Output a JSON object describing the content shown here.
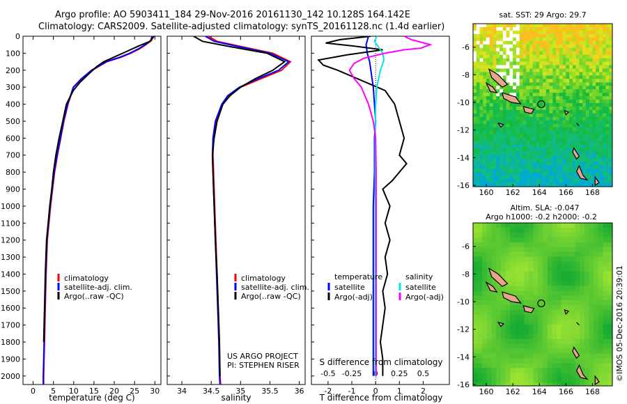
{
  "header": {
    "title_line1": "Argo profile: AO 5903411_184 29-Nov-2016 20161130_142 10.128S 164.142E",
    "title_line2": "Climatology: CARS2009. Satellite-adjusted climatology: synTS_20161128.nc (1.4d earlier)"
  },
  "colors": {
    "climatology": "#ff0000",
    "satellite": "#0000ff",
    "argo": "#000000",
    "sal_satellite": "#00e5e5",
    "sal_argo": "#ff00ff",
    "land": "#e6a58c"
  },
  "chart_data": [
    {
      "type": "line",
      "name": "temperature-panel",
      "xlabel": "temperature (deg C)",
      "ylabel": "",
      "xlim": [
        -2.5,
        31.5
      ],
      "ylim": [
        2050,
        0
      ],
      "xticks": [
        0,
        5,
        10,
        15,
        20,
        25,
        30
      ],
      "xtick_labels": [
        "0",
        "5",
        "10",
        "15",
        "20",
        "25",
        "30"
      ],
      "yticks": [
        0,
        100,
        200,
        300,
        400,
        500,
        600,
        700,
        800,
        900,
        1000,
        1100,
        1200,
        1300,
        1400,
        1500,
        1600,
        1700,
        1800,
        1900,
        2000
      ],
      "ytick_labels": [
        "0",
        "100",
        "200",
        "300",
        "400",
        "500",
        "600",
        "700",
        "800",
        "900",
        "1000",
        "1100",
        "1200",
        "1300",
        "1400",
        "1500",
        "1600",
        "1700",
        "1800",
        "1900",
        "2000"
      ],
      "legend": [
        "climatology",
        "satellite-adj. clim.",
        "Argo(..raw -QC)"
      ],
      "series": [
        {
          "name": "climatology",
          "color": "#ff0000",
          "x": [
            29.6,
            29.2,
            27.8,
            26.2,
            24.1,
            21.5,
            18.2,
            14.6,
            12.0,
            10.0,
            8.6,
            7.6,
            6.8,
            6.0,
            5.3,
            4.8,
            4.3,
            3.9,
            3.5,
            3.2,
            3.0,
            2.8,
            2.6,
            2.6
          ],
          "y": [
            0,
            25,
            50,
            75,
            100,
            125,
            150,
            200,
            250,
            300,
            400,
            500,
            600,
            700,
            800,
            900,
            1000,
            1100,
            1200,
            1400,
            1600,
            1800,
            2000,
            2050
          ]
        },
        {
          "name": "satellite-adj. clim.",
          "color": "#0000ff",
          "x": [
            29.3,
            29.0,
            27.6,
            25.9,
            23.8,
            21.2,
            18.0,
            14.4,
            11.9,
            9.9,
            8.5,
            7.5,
            6.7,
            5.9,
            5.2,
            4.7,
            4.2,
            3.8,
            3.4,
            3.1,
            2.9,
            2.7,
            2.5,
            2.5
          ],
          "y": [
            0,
            25,
            50,
            75,
            100,
            125,
            150,
            200,
            250,
            300,
            400,
            500,
            600,
            700,
            800,
            900,
            1000,
            1100,
            1200,
            1400,
            1600,
            1800,
            2000,
            2050
          ]
        },
        {
          "name": "Argo(..raw -QC)",
          "color": "#000000",
          "x": [
            29.8,
            28.8,
            25.8,
            23.0,
            20.2,
            17.4,
            15.6,
            13.8,
            11.6,
            9.9,
            8.2,
            7.3,
            6.4,
            5.6,
            5.0,
            4.6,
            4.1,
            3.7,
            3.3,
            3.0,
            2.8,
            2.6
          ],
          "y": [
            0,
            30,
            60,
            90,
            120,
            150,
            180,
            220,
            270,
            320,
            400,
            500,
            600,
            700,
            800,
            900,
            1000,
            1100,
            1200,
            1400,
            1600,
            1800
          ]
        }
      ]
    },
    {
      "type": "line",
      "name": "salinity-panel",
      "xlabel": "salinity",
      "xlim": [
        33.75,
        36.1
      ],
      "ylim": [
        2050,
        0
      ],
      "xticks": [
        34,
        34.5,
        35,
        35.5,
        36
      ],
      "xtick_labels": [
        "34",
        "34.5",
        "35",
        "35.5",
        "36"
      ],
      "legend": [
        "climatology",
        "satellite-adj. clim.",
        "Argo(..raw -QC)"
      ],
      "annotation": [
        "US ARGO PROJECT",
        "PI: STEPHEN RISER"
      ],
      "series": [
        {
          "name": "climatology",
          "color": "#ff0000",
          "x": [
            34.45,
            34.6,
            35.0,
            35.55,
            35.85,
            35.7,
            35.35,
            35.0,
            34.8,
            34.7,
            34.58,
            34.54,
            34.53,
            34.54,
            34.56,
            34.58,
            34.6,
            34.62,
            34.64,
            34.65,
            34.66
          ],
          "y": [
            0,
            30,
            60,
            100,
            150,
            200,
            250,
            300,
            350,
            400,
            500,
            600,
            700,
            800,
            1000,
            1200,
            1400,
            1600,
            1800,
            2000,
            2050
          ]
        },
        {
          "name": "satellite-adj. clim.",
          "color": "#0000ff",
          "x": [
            34.4,
            34.55,
            34.95,
            35.5,
            35.82,
            35.65,
            35.3,
            34.98,
            34.78,
            34.68,
            34.57,
            34.53,
            34.52,
            34.53,
            34.55,
            34.57,
            34.59,
            34.61,
            34.63,
            34.64,
            34.65
          ],
          "y": [
            0,
            30,
            60,
            100,
            150,
            200,
            250,
            300,
            350,
            400,
            500,
            600,
            700,
            800,
            1000,
            1200,
            1400,
            1600,
            1800,
            2000,
            2050
          ]
        },
        {
          "name": "Argo(..raw -QC)",
          "color": "#000000",
          "x": [
            34.2,
            34.35,
            34.8,
            35.45,
            35.75,
            35.55,
            35.25,
            35.0,
            34.82,
            34.7,
            34.6,
            34.55,
            34.52,
            34.53,
            34.55,
            34.57,
            34.6,
            34.62,
            34.64,
            34.65
          ],
          "y": [
            0,
            30,
            60,
            100,
            150,
            200,
            250,
            300,
            350,
            400,
            500,
            600,
            700,
            800,
            1000,
            1200,
            1400,
            1600,
            1800,
            2000
          ]
        }
      ]
    },
    {
      "type": "line",
      "name": "difference-panel",
      "xlabel": "T difference from climatology",
      "xlabel_top": "S difference from climatology",
      "xlim": [
        -2.7,
        3.1
      ],
      "ylim": [
        2050,
        0
      ],
      "xticks": [
        -2,
        -1,
        0,
        1,
        2
      ],
      "xtick_labels": [
        "-2",
        "-1",
        "0",
        "1",
        "2"
      ],
      "s_xticks": [
        -0.5,
        -0.25,
        0,
        0.25,
        0.5
      ],
      "s_xtick_labels": [
        "-0.5",
        "-0.25",
        "0",
        "0.25",
        "0.5"
      ],
      "legend": [
        "temperature",
        "satellite",
        "Argo(-adj)",
        "salinity",
        "satellite",
        "Argo(-adj)"
      ],
      "series": [
        {
          "name": "temperature satellite",
          "color": "#0000ff",
          "x": [
            -0.3,
            -0.4,
            -0.35,
            -0.25,
            -0.2,
            -0.1,
            -0.05,
            0,
            -0.05,
            -0.05,
            -0.1,
            -0.1,
            -0.1,
            -0.1,
            -0.1,
            -0.1
          ],
          "y": [
            0,
            50,
            100,
            150,
            200,
            300,
            400,
            500,
            600,
            800,
            1000,
            1200,
            1400,
            1600,
            1800,
            2000
          ]
        },
        {
          "name": "temperature Argo(-adj)",
          "color": "#000000",
          "x": [
            -0.2,
            -1.5,
            -2.1,
            -0.8,
            0.3,
            -1.2,
            -2.4,
            -2.2,
            -1.6,
            -0.6,
            0.4,
            0.8,
            1.0,
            1.2,
            1.0,
            1.3,
            1.0,
            0.7,
            0.3,
            0.6,
            0.4,
            0.6,
            0.4,
            0.5,
            0.3,
            0.4,
            0.3,
            0.2,
            0.3,
            0.3
          ],
          "y": [
            0,
            20,
            40,
            60,
            80,
            110,
            140,
            170,
            200,
            260,
            320,
            400,
            500,
            600,
            700,
            750,
            800,
            850,
            900,
            1000,
            1100,
            1200,
            1300,
            1400,
            1500,
            1600,
            1700,
            1800,
            1900,
            2000
          ]
        },
        {
          "name": "salinity satellite",
          "color": "#00e5e5",
          "x": [
            0.05,
            -0.05,
            0.1,
            0.3,
            0.35,
            0.2,
            0.05,
            0.0,
            -0.02,
            -0.02,
            -0.02,
            -0.02,
            -0.02,
            -0.02,
            -0.02
          ],
          "y": [
            0,
            30,
            60,
            100,
            140,
            200,
            300,
            400,
            600,
            800,
            1000,
            1200,
            1400,
            1600,
            2000
          ]
        },
        {
          "name": "salinity Argo(-adj)",
          "color": "#ff00ff",
          "x": [
            1.2,
            1.5,
            2.3,
            1.9,
            1.2,
            0.4,
            -0.5,
            -0.9,
            -1.1,
            -0.9,
            -0.6,
            -0.3,
            -0.1,
            0.0,
            0.02,
            0.02,
            0.02
          ],
          "y": [
            0,
            20,
            50,
            70,
            80,
            100,
            130,
            160,
            200,
            250,
            300,
            400,
            500,
            600,
            800,
            1200,
            2000
          ]
        }
      ]
    },
    {
      "type": "heatmap",
      "name": "sst-map",
      "title": "sat. SST: 29 Argo: 29.7",
      "xticks": [
        160,
        162,
        164,
        166,
        168
      ],
      "xtick_labels": [
        "160",
        "162",
        "164",
        "166",
        "168"
      ],
      "yticks": [
        -6,
        -8,
        -10,
        -12,
        -14,
        -16
      ],
      "ytick_labels": [
        "-6",
        "-8",
        "-10",
        "-12",
        "-14",
        "-16"
      ],
      "xlim": [
        159,
        169.5
      ],
      "ylim": [
        -16.1,
        -4.3
      ],
      "argo_position": [
        164.142,
        -10.128
      ]
    },
    {
      "type": "heatmap",
      "name": "sla-map",
      "title": "Altim. SLA: -0.047",
      "subtitle": "Argo h1000: -0.2 h2000: -0.2",
      "xticks": [
        160,
        162,
        164,
        166,
        168
      ],
      "xtick_labels": [
        "160",
        "162",
        "164",
        "166",
        "168"
      ],
      "yticks": [
        -6,
        -8,
        -10,
        -12,
        -14,
        -16
      ],
      "ytick_labels": [
        "-6",
        "-8",
        "-10",
        "-12",
        "-14",
        "-16"
      ],
      "xlim": [
        159,
        169.5
      ],
      "ylim": [
        -16.1,
        -4.3
      ],
      "argo_position": [
        164.142,
        -10.128
      ]
    }
  ],
  "footer": {
    "timestamp": "©IMOS 05-Dec-2016 20:39:01"
  }
}
